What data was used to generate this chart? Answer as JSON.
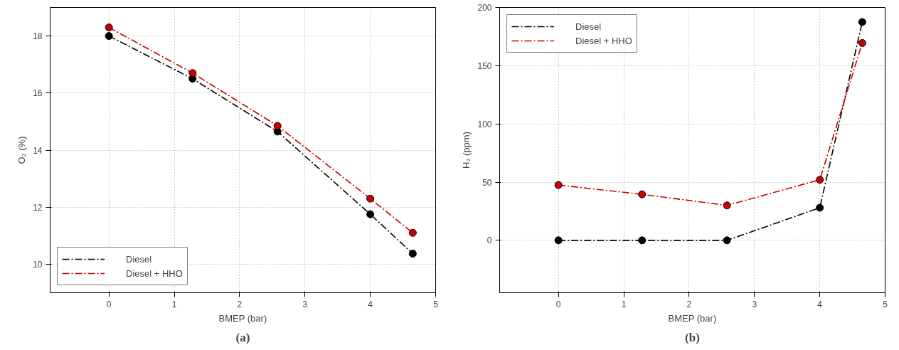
{
  "chart_data": [
    {
      "type": "line",
      "xlabel": "BMEP (bar)",
      "ylabel": "O₂ (%)",
      "annotations": [
        "(a)"
      ],
      "x": [
        0,
        1.28,
        2.58,
        4,
        4.65
      ],
      "series": [
        {
          "name": "Diesel",
          "color": "#000000",
          "values": [
            18,
            16.5,
            14.65,
            11.75,
            10.37
          ]
        },
        {
          "name": "Diesel + HHO",
          "color": "#cc0000",
          "values": [
            18.3,
            16.7,
            14.85,
            12.3,
            11.1
          ]
        }
      ],
      "xlim": [
        -0.9,
        5
      ],
      "xticks": [
        0,
        1,
        2,
        3,
        4,
        5
      ],
      "ylim": [
        9,
        19
      ],
      "yticks": [
        10,
        12,
        14,
        16,
        18
      ],
      "grid": true,
      "legend": "bottom left",
      "marker": "circle",
      "line_style": "dashed"
    },
    {
      "type": "line",
      "xlabel": "BMEP (bar)",
      "ylabel": "H₂ (ppm)",
      "annotations": [
        "(b)"
      ],
      "x": [
        0,
        1.28,
        2.58,
        4,
        4.65
      ],
      "series": [
        {
          "name": "Diesel",
          "color": "#000000",
          "values": [
            0,
            0,
            0,
            28,
            187.5
          ]
        },
        {
          "name": "Diesel + HHO",
          "color": "#cc0000",
          "values": [
            47.5,
            39.5,
            30,
            52,
            169.5
          ]
        }
      ],
      "xlim": [
        -0.9,
        5
      ],
      "xticks": [
        0,
        1,
        2,
        3,
        4,
        5
      ],
      "ylim": [
        -45,
        200
      ],
      "yticks": [
        0,
        50,
        100,
        150,
        200
      ],
      "grid": true,
      "legend": "top left",
      "marker": "circle",
      "line_style": "dashed"
    }
  ]
}
